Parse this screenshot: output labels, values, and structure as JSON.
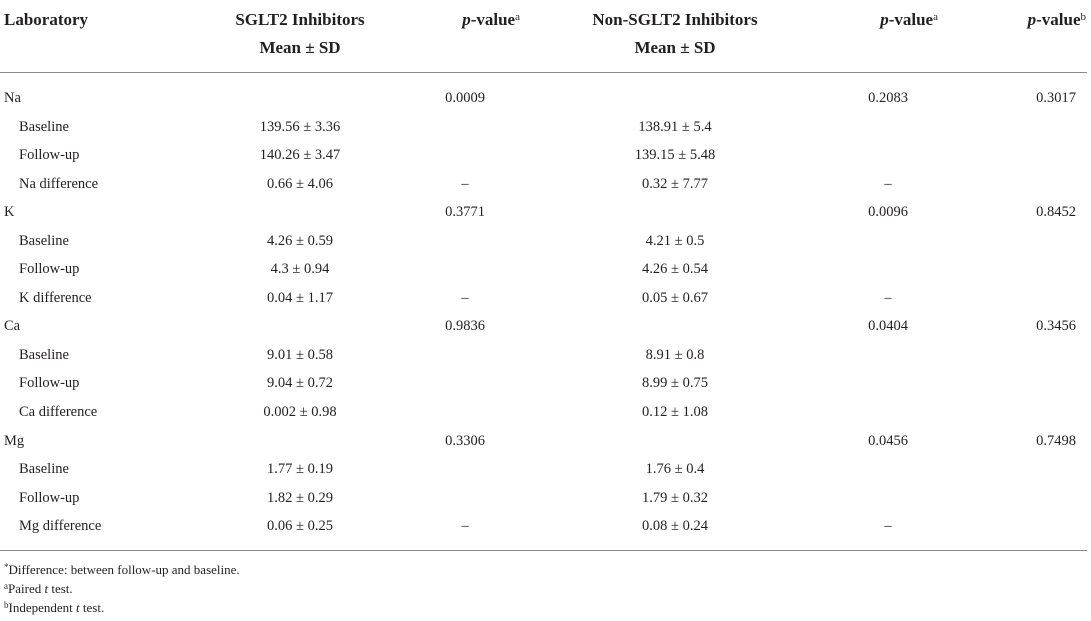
{
  "header": {
    "laboratory": "Laboratory",
    "sglt2_line1": "SGLT2 Inhibitors",
    "sglt2_line2": "Mean ± SD",
    "pvalue_italic": "p",
    "pvalue_text": "-value",
    "sup_a": "a",
    "sup_b": "b",
    "non_sglt2_line1": "Non-SGLT2 Inhibitors",
    "non_sglt2_line2": "Mean ± SD"
  },
  "rows": [
    {
      "label": "Na",
      "sglt2": "",
      "p1": "0.0009",
      "non_sglt2": "",
      "p2": "0.2083",
      "pb": "0.3017"
    },
    {
      "label": "Baseline",
      "sglt2": "139.56 ± 3.36",
      "p1": "",
      "non_sglt2": "138.91 ± 5.4",
      "p2": "",
      "pb": ""
    },
    {
      "label": "Follow-up",
      "sglt2": "140.26 ± 3.47",
      "p1": "",
      "non_sglt2": "139.15 ± 5.48",
      "p2": "",
      "pb": ""
    },
    {
      "label": "Na difference",
      "sglt2": "0.66 ± 4.06",
      "p1": "–",
      "non_sglt2": "0.32 ± 7.77",
      "p2": "–",
      "pb": ""
    },
    {
      "label": "K",
      "sglt2": "",
      "p1": "0.3771",
      "non_sglt2": "",
      "p2": "0.0096",
      "pb": "0.8452"
    },
    {
      "label": "Baseline",
      "sglt2": "4.26 ± 0.59",
      "p1": "",
      "non_sglt2": "4.21 ± 0.5",
      "p2": "",
      "pb": ""
    },
    {
      "label": "Follow-up",
      "sglt2": "4.3 ± 0.94",
      "p1": "",
      "non_sglt2": "4.26 ± 0.54",
      "p2": "",
      "pb": ""
    },
    {
      "label": "K difference",
      "sglt2": "0.04 ± 1.17",
      "p1": "–",
      "non_sglt2": "0.05 ± 0.67",
      "p2": "–",
      "pb": ""
    },
    {
      "label": "Ca",
      "sglt2": "",
      "p1": "0.9836",
      "non_sglt2": "",
      "p2": "0.0404",
      "pb": "0.3456"
    },
    {
      "label": "Baseline",
      "sglt2": "9.01 ± 0.58",
      "p1": "",
      "non_sglt2": "8.91 ± 0.8",
      "p2": "",
      "pb": ""
    },
    {
      "label": "Follow-up",
      "sglt2": "9.04 ± 0.72",
      "p1": "",
      "non_sglt2": "8.99 ± 0.75",
      "p2": "",
      "pb": ""
    },
    {
      "label": "Ca difference",
      "sglt2": "0.002 ± 0.98",
      "p1": "",
      "non_sglt2": "0.12 ± 1.08",
      "p2": "",
      "pb": ""
    },
    {
      "label": "Mg",
      "sglt2": "",
      "p1": "0.3306",
      "non_sglt2": "",
      "p2": "0.0456",
      "pb": "0.7498"
    },
    {
      "label": "Baseline",
      "sglt2": "1.77 ± 0.19",
      "p1": "",
      "non_sglt2": "1.76 ± 0.4",
      "p2": "",
      "pb": ""
    },
    {
      "label": "Follow-up",
      "sglt2": "1.82 ± 0.29",
      "p1": "",
      "non_sglt2": "1.79 ± 0.32",
      "p2": "",
      "pb": ""
    },
    {
      "label": "Mg difference",
      "sglt2": "0.06 ± 0.25",
      "p1": "–",
      "non_sglt2": "0.08 ± 0.24",
      "p2": "–",
      "pb": ""
    }
  ],
  "footnotes": {
    "star_mark": "*",
    "star_text": "Difference: between follow-up and baseline.",
    "a_mark": "a",
    "a_text_1": "Paired ",
    "a_italic": "t",
    "a_text_2": " test.",
    "b_mark": "b",
    "b_text_1": "Independent ",
    "b_italic": "t",
    "b_text_2": " test."
  }
}
